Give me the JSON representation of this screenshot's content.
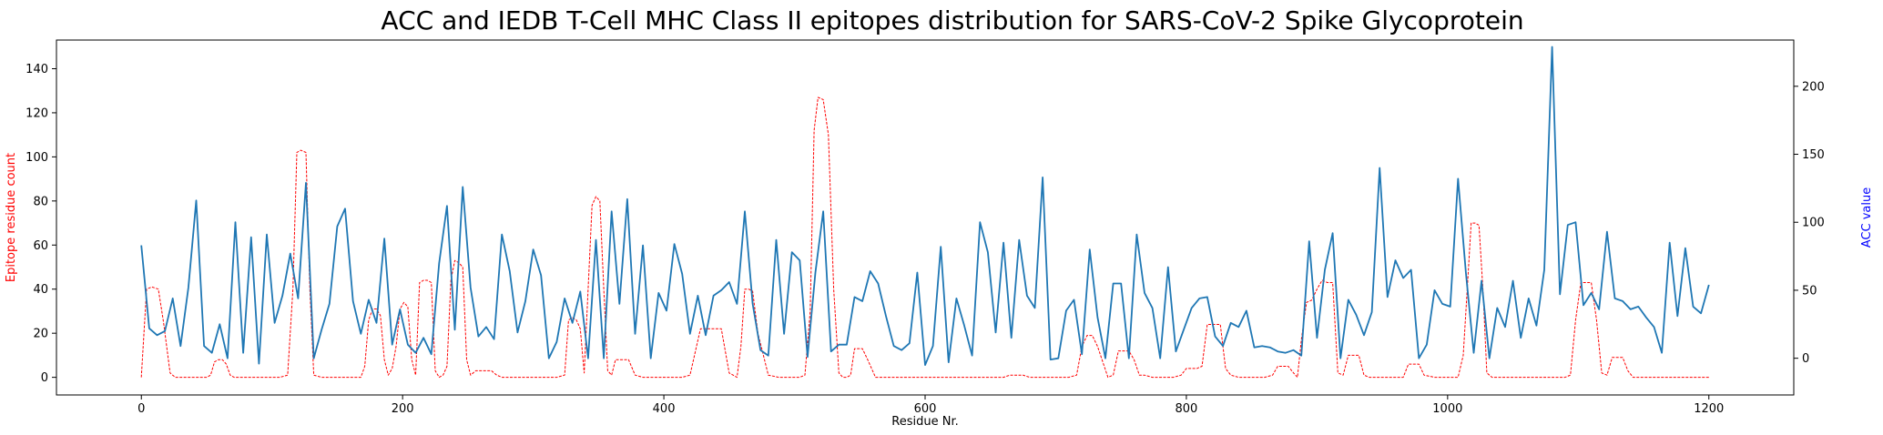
{
  "chart_data": {
    "type": "line",
    "title": "ACC and IEDB T-Cell MHC Class II epitopes distribution for SARS-CoV-2 Spike Glycoprotein",
    "xlabel": "Residue Nr.",
    "ylabel_left": "Epitope residue count",
    "ylabel_right": "ACC value",
    "xlim": [
      -65,
      1265
    ],
    "ylim_left": [
      -8,
      153
    ],
    "ylim_right": [
      -27,
      234
    ],
    "x_ticks": [
      0,
      200,
      400,
      600,
      800,
      1000,
      1200
    ],
    "y_ticks_left": [
      0,
      20,
      40,
      60,
      80,
      100,
      120,
      140
    ],
    "y_ticks_right": [
      0,
      50,
      100,
      150,
      200
    ],
    "grid": false,
    "legend": "none",
    "colors": {
      "epitope": "#ff0000",
      "acc": "#1f77b4",
      "left_label": "#ff0000",
      "right_label": "#0000ff"
    },
    "series": [
      {
        "axis": "left",
        "style": "dashed",
        "x": [
          0,
          4,
          8,
          13,
          17,
          22,
          26,
          30,
          35,
          40,
          45,
          50,
          53,
          56,
          59,
          62,
          65,
          68,
          71,
          76,
          82,
          88,
          94,
          100,
          106,
          112,
          116,
          119,
          122,
          126,
          129,
          132,
          138,
          145,
          152,
          160,
          168,
          171,
          174,
          177,
          180,
          183,
          186,
          189,
          192,
          195,
          198,
          201,
          204,
          207,
          210,
          213,
          216,
          219,
          222,
          225,
          228,
          231,
          234,
          237,
          240,
          243,
          246,
          249,
          252,
          256,
          260,
          264,
          268,
          272,
          276,
          282,
          290,
          300,
          310,
          318,
          324,
          327,
          330,
          333,
          336,
          339,
          342,
          345,
          348,
          351,
          354,
          357,
          360,
          363,
          368,
          373,
          378,
          384,
          390,
          396,
          402,
          408,
          414,
          420,
          428,
          436,
          444,
          450,
          456,
          459,
          462,
          465,
          468,
          472,
          480,
          488,
          496,
          504,
          508,
          512,
          515,
          518,
          522,
          526,
          530,
          534,
          537,
          540,
          543,
          546,
          549,
          552,
          556,
          562,
          570,
          580,
          600,
          620,
          640,
          660,
          665,
          670,
          675,
          680,
          690,
          700,
          710,
          716,
          720,
          724,
          728,
          732,
          740,
          744,
          748,
          752,
          756,
          760,
          764,
          768,
          774,
          790,
          796,
          800,
          804,
          808,
          812,
          816,
          820,
          826,
          830,
          834,
          840,
          850,
          860,
          866,
          870,
          874,
          878,
          882,
          885,
          888,
          892,
          896,
          900,
          904,
          908,
          912,
          916,
          920,
          924,
          928,
          932,
          936,
          940,
          946,
          960,
          966,
          970,
          974,
          978,
          982,
          990,
          1000,
          1008,
          1012,
          1015,
          1018,
          1021,
          1024,
          1027,
          1030,
          1034,
          1040,
          1046,
          1060,
          1080,
          1090,
          1094,
          1098,
          1102,
          1106,
          1110,
          1114,
          1118,
          1122,
          1126,
          1130,
          1134,
          1138,
          1142,
          1146,
          1152,
          1165,
          1180,
          1200
        ],
        "values": [
          0,
          40,
          41,
          40,
          25,
          2,
          0,
          0,
          0,
          0,
          0,
          0,
          1,
          7,
          8,
          8,
          6,
          1,
          0,
          0,
          0,
          0,
          0,
          0,
          0,
          1,
          40,
          102,
          103,
          102,
          40,
          1,
          0,
          0,
          0,
          0,
          0,
          5,
          26,
          31,
          31,
          28,
          8,
          1,
          4,
          14,
          31,
          34,
          32,
          8,
          1,
          43,
          44,
          44,
          43,
          3,
          0,
          1,
          5,
          44,
          53,
          52,
          50,
          8,
          1,
          3,
          3,
          3,
          3,
          1,
          0,
          0,
          0,
          0,
          0,
          0,
          1,
          26,
          27,
          26,
          22,
          2,
          40,
          78,
          82,
          80,
          40,
          3,
          1,
          8,
          8,
          8,
          1,
          0,
          0,
          0,
          0,
          0,
          0,
          1,
          22,
          22,
          22,
          2,
          0,
          14,
          40,
          40,
          39,
          20,
          1,
          0,
          0,
          0,
          1,
          30,
          112,
          127,
          126,
          110,
          40,
          2,
          0,
          0,
          1,
          13,
          13,
          13,
          8,
          0,
          0,
          0,
          0,
          0,
          0,
          0,
          1,
          1,
          1,
          0,
          0,
          0,
          0,
          1,
          14,
          19,
          19,
          14,
          0,
          1,
          12,
          12,
          12,
          8,
          1,
          1,
          0,
          0,
          1,
          4,
          4,
          4,
          5,
          24,
          24,
          24,
          4,
          1,
          0,
          0,
          0,
          1,
          5,
          5,
          5,
          2,
          0,
          17,
          34,
          35,
          40,
          44,
          43,
          43,
          2,
          1,
          10,
          10,
          10,
          1,
          0,
          0,
          0,
          0,
          6,
          6,
          6,
          1,
          0,
          0,
          0,
          10,
          40,
          70,
          70,
          69,
          40,
          2,
          0,
          0,
          0,
          0,
          0,
          0,
          1,
          26,
          43,
          43,
          43,
          26,
          2,
          1,
          9,
          9,
          9,
          3,
          0,
          0,
          0,
          0,
          0,
          0
        ]
      },
      {
        "axis": "right",
        "style": "solid",
        "x": [
          0,
          6,
          12,
          18,
          24,
          30,
          36,
          42,
          48,
          54,
          60,
          66,
          72,
          78,
          84,
          90,
          96,
          102,
          108,
          114,
          120,
          126,
          132,
          138,
          144,
          150,
          156,
          162,
          168,
          174,
          180,
          186,
          192,
          198,
          204,
          210,
          216,
          222,
          228,
          234,
          240,
          246,
          252,
          258,
          264,
          270,
          276,
          282,
          288,
          294,
          300,
          306,
          312,
          318,
          324,
          330,
          336,
          342,
          348,
          354,
          360,
          366,
          372,
          378,
          384,
          390,
          396,
          402,
          408,
          414,
          420,
          426,
          432,
          438,
          444,
          450,
          456,
          462,
          468,
          474,
          480,
          486,
          492,
          498,
          504,
          510,
          516,
          522,
          528,
          534,
          540,
          546,
          552,
          558,
          564,
          570,
          576,
          582,
          588,
          594,
          600,
          606,
          612,
          618,
          624,
          630,
          636,
          642,
          648,
          654,
          660,
          666,
          672,
          678,
          684,
          690,
          696,
          702,
          708,
          714,
          720,
          726,
          732,
          738,
          744,
          750,
          756,
          762,
          768,
          774,
          780,
          786,
          792,
          798,
          804,
          810,
          816,
          822,
          828,
          834,
          840,
          846,
          852,
          858,
          864,
          870,
          876,
          882,
          888,
          894,
          900,
          906,
          912,
          918,
          924,
          930,
          936,
          942,
          948,
          954,
          960,
          966,
          972,
          978,
          984,
          990,
          996,
          1002,
          1008,
          1014,
          1020,
          1026,
          1032,
          1038,
          1044,
          1050,
          1056,
          1062,
          1068,
          1074,
          1080,
          1086,
          1092,
          1098,
          1104,
          1110,
          1116,
          1122,
          1128,
          1134,
          1140,
          1146,
          1152,
          1158,
          1164,
          1170,
          1176,
          1182,
          1188,
          1194,
          1200
        ],
        "values": [
          83,
          22,
          17,
          20,
          44,
          9,
          52,
          116,
          9,
          4,
          25,
          0,
          100,
          4,
          89,
          -4,
          91,
          26,
          46,
          77,
          44,
          129,
          0,
          21,
          40,
          97,
          110,
          42,
          18,
          43,
          26,
          88,
          10,
          36,
          10,
          4,
          15,
          3,
          70,
          112,
          21,
          126,
          52,
          16,
          23,
          14,
          91,
          64,
          19,
          42,
          80,
          61,
          0,
          12,
          44,
          26,
          49,
          0,
          87,
          0,
          108,
          40,
          117,
          18,
          83,
          0,
          48,
          35,
          84,
          62,
          18,
          46,
          17,
          46,
          50,
          56,
          40,
          108,
          40,
          6,
          2,
          87,
          18,
          78,
          72,
          1,
          63,
          108,
          5,
          10,
          10,
          45,
          42,
          64,
          55,
          31,
          9,
          6,
          11,
          63,
          -5,
          9,
          82,
          -3,
          44,
          24,
          2,
          100,
          78,
          19,
          85,
          15,
          87,
          46,
          37,
          133,
          -1,
          0,
          35,
          43,
          3,
          80,
          30,
          0,
          55,
          55,
          0,
          91,
          48,
          37,
          0,
          67,
          5,
          21,
          37,
          44,
          45,
          16,
          9,
          26,
          23,
          35,
          8,
          9,
          8,
          5,
          4,
          6,
          2,
          86,
          15,
          65,
          92,
          0,
          43,
          32,
          17,
          34,
          140,
          45,
          72,
          59,
          65,
          0,
          10,
          50,
          40,
          38,
          132,
          63,
          4,
          57,
          0,
          37,
          23,
          57,
          15,
          44,
          24,
          65,
          229,
          47,
          98,
          100,
          39,
          48,
          36,
          93,
          44,
          42,
          36,
          38,
          30,
          23,
          4,
          85,
          31,
          81,
          38,
          33,
          54
        ]
      }
    ]
  }
}
